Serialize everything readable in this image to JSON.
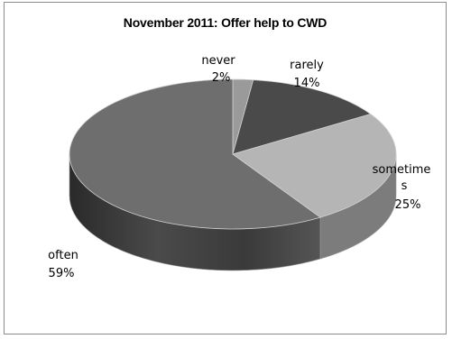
{
  "chart_data": {
    "type": "pie",
    "title": "November 2011: Offer help to CWD",
    "slices": [
      {
        "label": "never",
        "value": 2,
        "percent_label": "2%",
        "color": "#9a9a9a"
      },
      {
        "label": "rarely",
        "value": 14,
        "percent_label": "14%",
        "color": "#4a4a4a"
      },
      {
        "label": "sometimes",
        "label_lines": [
          "sometime",
          "s"
        ],
        "value": 25,
        "percent_label": "25%",
        "color": "#b5b5b5"
      },
      {
        "label": "often",
        "value": 59,
        "percent_label": "59%",
        "color": "#6e6e6e"
      }
    ],
    "legend": "none",
    "style": "3d-pie"
  }
}
